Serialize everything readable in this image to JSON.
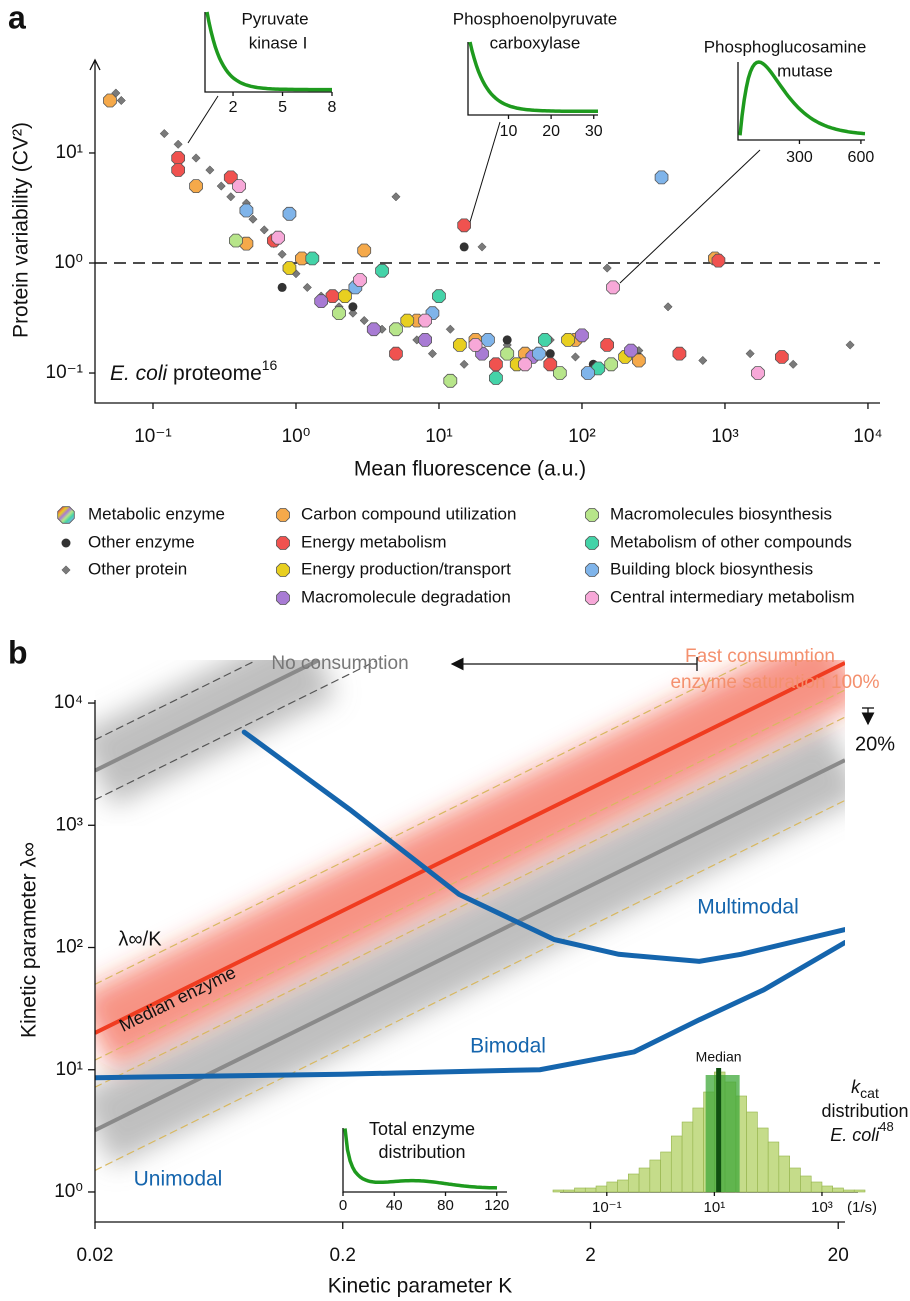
{
  "chart_data": [
    {
      "type": "scatter",
      "panel_label": "a",
      "xlabel": "Mean fluorescence (a.u.)",
      "ylabel": "Protein variability (CV²)",
      "log_x": true,
      "log_y": true,
      "xlim": [
        0.0393,
        12140
      ],
      "ylim": [
        0.0534,
        70
      ],
      "xticks": [
        {
          "value": 0.1,
          "label": "10⁻¹"
        },
        {
          "value": 1,
          "label": "10⁰"
        },
        {
          "value": 10,
          "label": "10¹"
        },
        {
          "value": 100,
          "label": "10²"
        },
        {
          "value": 1000,
          "label": "10³"
        },
        {
          "value": 10000,
          "label": "10⁴"
        }
      ],
      "yticks": [
        {
          "value": 0.1,
          "label": "10⁻¹"
        },
        {
          "value": 1,
          "label": "10⁰"
        },
        {
          "value": 10,
          "label": "10¹"
        }
      ],
      "hline": 1,
      "annotation": {
        "species": "E. coli",
        "text": "proteome",
        "ref": "16"
      },
      "legend_group": "Metabolic enzyme",
      "series": [
        {
          "name": "Other enzyme",
          "color": "#333333",
          "marker": "circle",
          "x": [
            0.8,
            1.5,
            2.5,
            6,
            15,
            30,
            60,
            120,
            250
          ],
          "values": [
            0.6,
            0.45,
            0.4,
            0.3,
            1.4,
            0.2,
            0.15,
            0.12,
            0.14
          ]
        },
        {
          "name": "Other protein",
          "color": "#7a7a7a",
          "marker": "diamond",
          "x": [
            0.055,
            0.06,
            0.12,
            0.15,
            0.2,
            0.25,
            0.3,
            0.35,
            0.45,
            0.5,
            0.6,
            0.7,
            0.8,
            1.0,
            1.2,
            1.5,
            2,
            2.5,
            3,
            4,
            5,
            7,
            9,
            12,
            15,
            20,
            30,
            45,
            60,
            90,
            150,
            250,
            400,
            700,
            1500,
            3000,
            7500
          ],
          "values": [
            35,
            30,
            15,
            12,
            9,
            7,
            5,
            4,
            3.5,
            2.5,
            2,
            1.5,
            1.2,
            0.8,
            0.6,
            0.5,
            0.4,
            0.35,
            0.3,
            0.25,
            4,
            0.2,
            0.15,
            0.25,
            0.12,
            1.4,
            0.18,
            0.15,
            0.2,
            0.14,
            0.9,
            0.16,
            0.4,
            0.13,
            0.15,
            0.12,
            0.18
          ]
        },
        {
          "name": "Carbon compound utilization",
          "color": "#f5a94a",
          "marker": "octagon",
          "x": [
            0.05,
            0.2,
            0.45,
            1.1,
            3,
            7,
            18,
            40,
            90,
            250,
            850
          ],
          "values": [
            30,
            5,
            1.5,
            1.1,
            1.3,
            0.3,
            0.2,
            0.15,
            0.2,
            0.13,
            1.1
          ]
        },
        {
          "name": "Energy metabolism",
          "color": "#f0524f",
          "marker": "octagon",
          "x": [
            0.15,
            0.15,
            0.35,
            0.7,
            1.8,
            5,
            15,
            25,
            60,
            150,
            480,
            900,
            2500
          ],
          "values": [
            9,
            7,
            6,
            1.6,
            0.5,
            0.15,
            2.2,
            0.12,
            0.12,
            0.18,
            0.15,
            1.05,
            0.14
          ]
        },
        {
          "name": "Energy production/transport",
          "color": "#e8cf20",
          "marker": "octagon",
          "x": [
            0.9,
            2.2,
            6,
            14,
            35,
            80,
            200
          ],
          "values": [
            0.9,
            0.5,
            0.3,
            0.18,
            0.12,
            0.2,
            0.14
          ]
        },
        {
          "name": "Macromolecule degradation",
          "color": "#a87bd4",
          "marker": "octagon",
          "x": [
            1.5,
            3.5,
            8,
            20,
            45,
            100,
            220
          ],
          "values": [
            0.45,
            0.25,
            0.2,
            0.15,
            0.14,
            0.22,
            0.16
          ]
        },
        {
          "name": "Macromolecules biosynthesis",
          "color": "#b7e58a",
          "marker": "octagon",
          "x": [
            0.38,
            2,
            5,
            12,
            30,
            70,
            160
          ],
          "values": [
            1.6,
            0.35,
            0.25,
            0.085,
            0.15,
            0.1,
            0.12
          ]
        },
        {
          "name": "Metabolism of other compounds",
          "color": "#44d3a8",
          "marker": "octagon",
          "x": [
            1.3,
            4,
            10,
            25,
            55,
            130
          ],
          "values": [
            1.1,
            0.85,
            0.5,
            0.09,
            0.2,
            0.11
          ]
        },
        {
          "name": "Building block biosynthesis",
          "color": "#7fb4ea",
          "marker": "octagon",
          "x": [
            0.45,
            0.9,
            2.6,
            9,
            22,
            50,
            110,
            360
          ],
          "values": [
            3,
            2.8,
            0.6,
            0.35,
            0.2,
            0.15,
            0.1,
            6
          ]
        },
        {
          "name": "Central intermediary metabolism",
          "color": "#f7a8d8",
          "marker": "octagon",
          "x": [
            0.4,
            0.75,
            2.8,
            8,
            18,
            40,
            165,
            1700
          ],
          "values": [
            5,
            1.7,
            0.7,
            0.3,
            0.18,
            0.12,
            0.6,
            0.1
          ]
        }
      ],
      "insets": [
        {
          "title": [
            "Pyruvate",
            "kinase I"
          ],
          "xlim": [
            0.3,
            8
          ],
          "xticks": [
            2,
            5,
            8
          ]
        },
        {
          "title": [
            "Phosphoenolpyruvate",
            "carboxylase"
          ],
          "xlim": [
            0.5,
            31
          ],
          "xticks": [
            10,
            20,
            30
          ]
        },
        {
          "title": [
            "Phosphoglucosamine",
            "mutase"
          ],
          "xlim": [
            0,
            620
          ],
          "xticks": [
            300,
            600
          ]
        }
      ]
    },
    {
      "type": "line",
      "panel_label": "b",
      "xlabel": "Kinetic parameter K",
      "ylabel": "Kinetic parameter λ∞",
      "log_x": true,
      "log_y": true,
      "xlim": [
        0.02,
        21.3
      ],
      "ylim": [
        0.568,
        22500
      ],
      "xticks": [
        0.02,
        0.2,
        2,
        20
      ],
      "yticks": [
        {
          "value": 1,
          "label": "10⁰"
        },
        {
          "value": 10,
          "label": "10¹"
        },
        {
          "value": 100,
          "label": "10²"
        },
        {
          "value": 1000,
          "label": "10³"
        },
        {
          "value": 10000,
          "label": "10⁴"
        }
      ],
      "series": [
        {
          "color": "#8a8a8a",
          "style": "band",
          "x": [
            0.02,
            0.16
          ],
          "values": [
            2800,
            22400
          ]
        },
        {
          "color": "#555555",
          "style": "dashed",
          "x": [
            0.02,
            0.088
          ],
          "values": [
            5000,
            22000
          ]
        },
        {
          "color": "#555555",
          "style": "dashed",
          "x": [
            0.02,
            0.27
          ],
          "values": [
            1620,
            21870
          ]
        },
        {
          "color": "#8a8a8a",
          "style": "band",
          "x": [
            0.02,
            21.3
          ],
          "values": [
            3.2,
            3408
          ]
        },
        {
          "color": "#f03c20",
          "style": "band",
          "x": [
            0.02,
            21.3
          ],
          "values": [
            20,
            21300
          ]
        },
        {
          "color": "#d8b860",
          "style": "dashed",
          "x": [
            0.02,
            8.8
          ],
          "values": [
            50,
            22000
          ]
        },
        {
          "color": "#d8b860",
          "style": "dashed",
          "x": [
            0.02,
            21.3
          ],
          "values": [
            12,
            12780
          ]
        },
        {
          "color": "#d8b860",
          "style": "dashed",
          "x": [
            0.02,
            21.3
          ],
          "values": [
            7.2,
            7668
          ]
        },
        {
          "color": "#d8b860",
          "style": "dashed",
          "x": [
            0.02,
            21.3
          ],
          "values": [
            1.5,
            1598
          ]
        },
        {
          "color": "#1565ad",
          "style": "solid",
          "x": [
            0.08,
            0.213,
            0.59,
            1.43,
            2.6,
            5.5,
            8.1,
            21.3
          ],
          "values": [
            5780,
            1350,
            272,
            116,
            88,
            77,
            88,
            140
          ]
        },
        {
          "color": "#1565ad",
          "style": "solid",
          "x": [
            0.02,
            0.2,
            1.25,
            3,
            5.5,
            10,
            21.3
          ],
          "values": [
            8.6,
            9.2,
            10,
            14,
            25.6,
            45,
            110
          ]
        }
      ],
      "annotations": [
        "No consumption",
        "Fast consumption",
        "enzyme saturation 100%",
        "20%",
        "λ∞/K",
        "Median enzyme",
        "Multimodal",
        "Bimodal",
        "Unimodal"
      ],
      "total_enzyme": {
        "title": [
          "Total enzyme",
          "distribution"
        ],
        "xlim": [
          0,
          128
        ],
        "xticks": [
          0,
          40,
          80,
          120
        ]
      },
      "kcat": {
        "bins": [
          0.01,
          0.0158,
          0.0251,
          0.0398,
          0.0631,
          0.1,
          0.158,
          0.251,
          0.398,
          0.631,
          1,
          1.58,
          2.51,
          3.98,
          6.31,
          10,
          15.8,
          25.1,
          39.8,
          63.1,
          100,
          158,
          251,
          398,
          631,
          1000,
          1580,
          2510,
          3980,
          6310
        ],
        "counts": [
          1,
          1,
          2,
          2,
          3,
          5,
          6,
          9,
          12,
          16,
          20,
          28,
          35,
          42,
          50,
          60,
          55,
          48,
          40,
          32,
          25,
          18,
          12,
          8,
          5,
          3,
          2,
          1,
          1
        ],
        "color": "#c5dc8a",
        "xlim": [
          0.01,
          6310
        ],
        "xticks": [
          {
            "value": 0.1,
            "label": "10⁻¹"
          },
          {
            "value": 10,
            "label": "10¹"
          },
          {
            "value": 1000,
            "label": "10³"
          }
        ],
        "unit": "(1/s)",
        "median": 12,
        "median_label": "Median",
        "label": {
          "k": "k",
          "sub": "cat",
          "line2": "distribution",
          "species": "E. coli",
          "ref": "48"
        }
      }
    }
  ]
}
